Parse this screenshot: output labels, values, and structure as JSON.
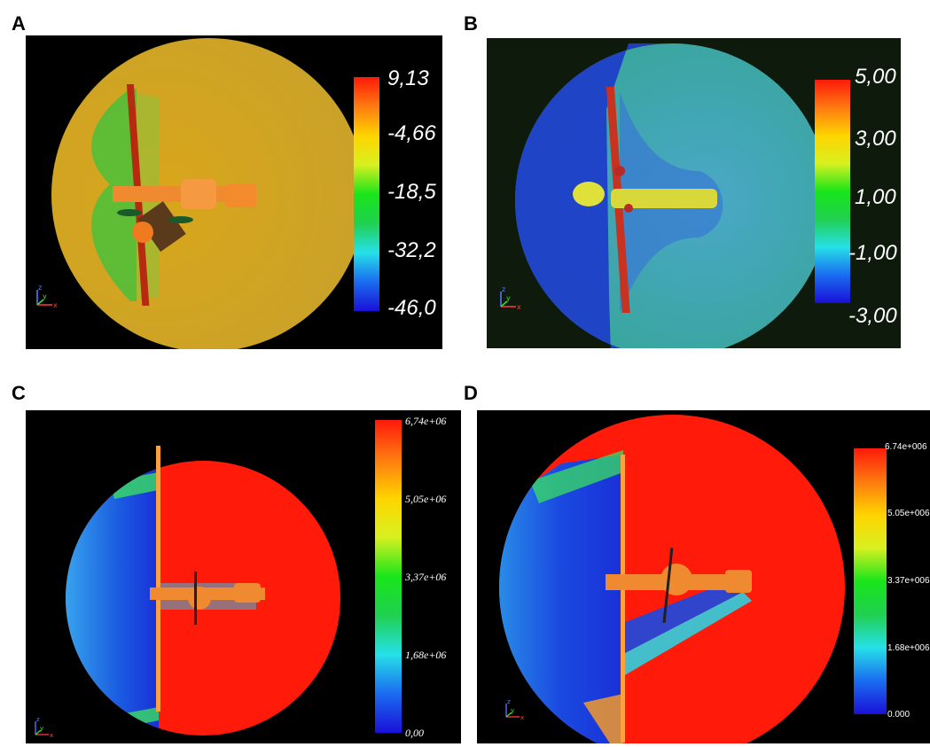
{
  "figure": {
    "panels": [
      {
        "label": "A",
        "background": "#000000",
        "disc_color": "#d4a31a",
        "colorbar_ticks": [
          "9,13",
          "-4,66",
          "-18,5",
          "-32,2",
          "-46,0"
        ]
      },
      {
        "label": "B",
        "background": "#0e1a0c",
        "disc_color": "#3aa5a2",
        "colorbar_ticks": [
          "5,00",
          "3,00",
          "1,00",
          "-1,00",
          "-3,00"
        ]
      },
      {
        "label": "C",
        "background": "#000000",
        "disc_color": "#ff1a0a",
        "colorbar_ticks": [
          "6,74e+06",
          "5,05e+06",
          "3,37e+06",
          "1,68e+06",
          "0,00"
        ]
      },
      {
        "label": "D",
        "background": "#000000",
        "disc_color": "#ff1a0a",
        "colorbar_ticks": [
          "6.74e+006",
          "5.05e+006",
          "3.37e+006",
          "1.68e+006",
          "0.000"
        ]
      }
    ],
    "colormap": [
      "#1a10d8",
      "#1a6cf0",
      "#26e0e8",
      "#20d050",
      "#19e51a",
      "#d8f020",
      "#ffd400",
      "#ff7a10",
      "#ff1a0a"
    ],
    "axis_glyphs": {
      "z": "z",
      "y": "y",
      "x": "x"
    },
    "icons": [
      "axes-triad-icon"
    ]
  }
}
